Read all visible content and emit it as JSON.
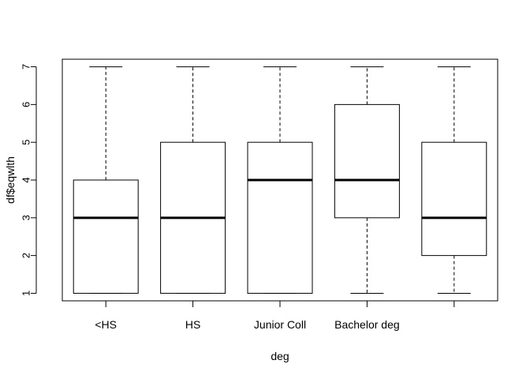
{
  "chart_data": {
    "type": "boxplot",
    "xlabel": "deg",
    "ylabel": "df$eqwlth",
    "categories": [
      "<HS",
      "HS",
      "Junior Coll",
      "Bachelor deg",
      ""
    ],
    "boxes": [
      {
        "whisker_low": 1,
        "q1": 1,
        "median": 3,
        "q3": 4,
        "whisker_high": 7
      },
      {
        "whisker_low": 1,
        "q1": 1,
        "median": 3,
        "q3": 5,
        "whisker_high": 7
      },
      {
        "whisker_low": 1,
        "q1": 1,
        "median": 4,
        "q3": 5,
        "whisker_high": 7
      },
      {
        "whisker_low": 1,
        "q1": 3,
        "median": 4,
        "q3": 6,
        "whisker_high": 7
      },
      {
        "whisker_low": 1,
        "q1": 2,
        "median": 3,
        "q3": 5,
        "whisker_high": 7
      }
    ],
    "yticks": [
      1,
      2,
      3,
      4,
      5,
      6,
      7
    ],
    "ylim": [
      0.8,
      7.2
    ]
  }
}
